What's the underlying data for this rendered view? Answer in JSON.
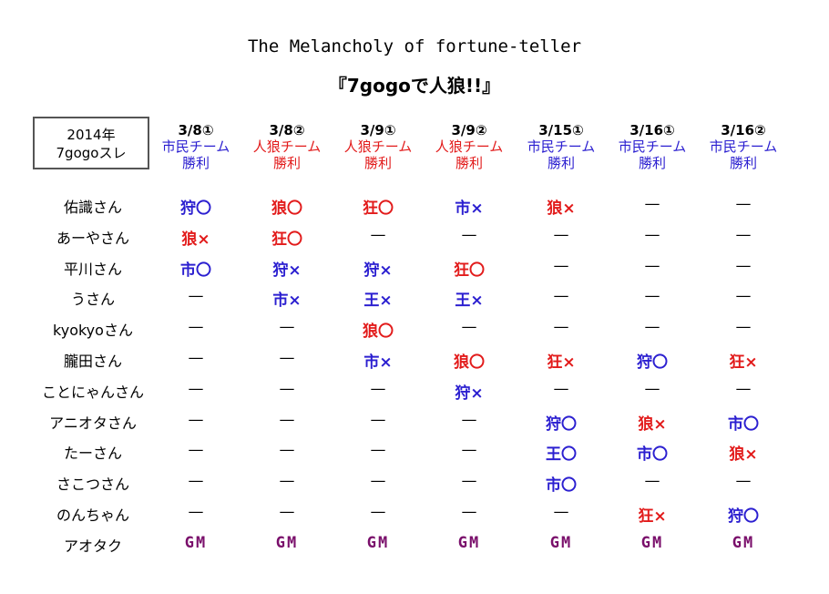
{
  "title_en": "The Melancholy of fortune-teller",
  "title_jp": "『7gogoで人狼!!』",
  "corner": [
    "2014年",
    "7gogoスレ"
  ],
  "colors": {
    "blue": "#2b1fd0",
    "red": "#e21b1b",
    "gm": "#7a0f6b"
  },
  "games": [
    {
      "date": "3/8①",
      "team": "市民チーム",
      "result": "勝利",
      "winner": "village"
    },
    {
      "date": "3/8②",
      "team": "人狼チーム",
      "result": "勝利",
      "winner": "wolf"
    },
    {
      "date": "3/9①",
      "team": "人狼チーム",
      "result": "勝利",
      "winner": "wolf"
    },
    {
      "date": "3/9②",
      "team": "人狼チーム",
      "result": "勝利",
      "winner": "wolf"
    },
    {
      "date": "3/15①",
      "team": "市民チーム",
      "result": "勝利",
      "winner": "village"
    },
    {
      "date": "3/16①",
      "team": "市民チーム",
      "result": "勝利",
      "winner": "village"
    },
    {
      "date": "3/16②",
      "team": "市民チーム",
      "result": "勝利",
      "winner": "village"
    }
  ],
  "players": [
    {
      "name": "佑識さん",
      "cells": [
        [
          "狩〇",
          "b"
        ],
        [
          "狼〇",
          "r"
        ],
        [
          "狂〇",
          "r"
        ],
        [
          "市×",
          "b"
        ],
        [
          "狼×",
          "r"
        ],
        [
          "—",
          "d"
        ],
        [
          "—",
          "d"
        ]
      ]
    },
    {
      "name": "あーやさん",
      "cells": [
        [
          "狼×",
          "r"
        ],
        [
          "狂〇",
          "r"
        ],
        [
          "—",
          "d"
        ],
        [
          "—",
          "d"
        ],
        [
          "—",
          "d"
        ],
        [
          "—",
          "d"
        ],
        [
          "—",
          "d"
        ]
      ]
    },
    {
      "name": "平川さん",
      "cells": [
        [
          "市〇",
          "b"
        ],
        [
          "狩×",
          "b"
        ],
        [
          "狩×",
          "b"
        ],
        [
          "狂〇",
          "r"
        ],
        [
          "—",
          "d"
        ],
        [
          "—",
          "d"
        ],
        [
          "—",
          "d"
        ]
      ]
    },
    {
      "name": "うさん",
      "cells": [
        [
          "—",
          "d"
        ],
        [
          "市×",
          "b"
        ],
        [
          "王×",
          "b"
        ],
        [
          "王×",
          "b"
        ],
        [
          "—",
          "d"
        ],
        [
          "—",
          "d"
        ],
        [
          "—",
          "d"
        ]
      ]
    },
    {
      "name": "kyokyoさん",
      "cells": [
        [
          "—",
          "d"
        ],
        [
          "—",
          "d"
        ],
        [
          "狼〇",
          "r"
        ],
        [
          "—",
          "d"
        ],
        [
          "—",
          "d"
        ],
        [
          "—",
          "d"
        ],
        [
          "—",
          "d"
        ]
      ]
    },
    {
      "name": "朧田さん",
      "cells": [
        [
          "—",
          "d"
        ],
        [
          "—",
          "d"
        ],
        [
          "市×",
          "b"
        ],
        [
          "狼〇",
          "r"
        ],
        [
          "狂×",
          "r"
        ],
        [
          "狩〇",
          "b"
        ],
        [
          "狂×",
          "r"
        ]
      ]
    },
    {
      "name": "ことにゃんさん",
      "cells": [
        [
          "—",
          "d"
        ],
        [
          "—",
          "d"
        ],
        [
          "—",
          "d"
        ],
        [
          "狩×",
          "b"
        ],
        [
          "—",
          "d"
        ],
        [
          "—",
          "d"
        ],
        [
          "—",
          "d"
        ]
      ]
    },
    {
      "name": "アニオタさん",
      "cells": [
        [
          "—",
          "d"
        ],
        [
          "—",
          "d"
        ],
        [
          "—",
          "d"
        ],
        [
          "—",
          "d"
        ],
        [
          "狩〇",
          "b"
        ],
        [
          "狼×",
          "r"
        ],
        [
          "市〇",
          "b"
        ]
      ]
    },
    {
      "name": "たーさん",
      "cells": [
        [
          "—",
          "d"
        ],
        [
          "—",
          "d"
        ],
        [
          "—",
          "d"
        ],
        [
          "—",
          "d"
        ],
        [
          "王〇",
          "b"
        ],
        [
          "市〇",
          "b"
        ],
        [
          "狼×",
          "r"
        ]
      ]
    },
    {
      "name": "さこつさん",
      "cells": [
        [
          "—",
          "d"
        ],
        [
          "—",
          "d"
        ],
        [
          "—",
          "d"
        ],
        [
          "—",
          "d"
        ],
        [
          "市〇",
          "b"
        ],
        [
          "—",
          "d"
        ],
        [
          "—",
          "d"
        ]
      ]
    },
    {
      "name": "のんちゃん",
      "cells": [
        [
          "—",
          "d"
        ],
        [
          "—",
          "d"
        ],
        [
          "—",
          "d"
        ],
        [
          "—",
          "d"
        ],
        [
          "—",
          "d"
        ],
        [
          "狂×",
          "r"
        ],
        [
          "狩〇",
          "b"
        ]
      ]
    },
    {
      "name": "アオタク",
      "cells": [
        [
          "GM",
          "g"
        ],
        [
          "GM",
          "g"
        ],
        [
          "GM",
          "g"
        ],
        [
          "GM",
          "g"
        ],
        [
          "GM",
          "g"
        ],
        [
          "GM",
          "g"
        ],
        [
          "GM",
          "g"
        ]
      ]
    }
  ]
}
